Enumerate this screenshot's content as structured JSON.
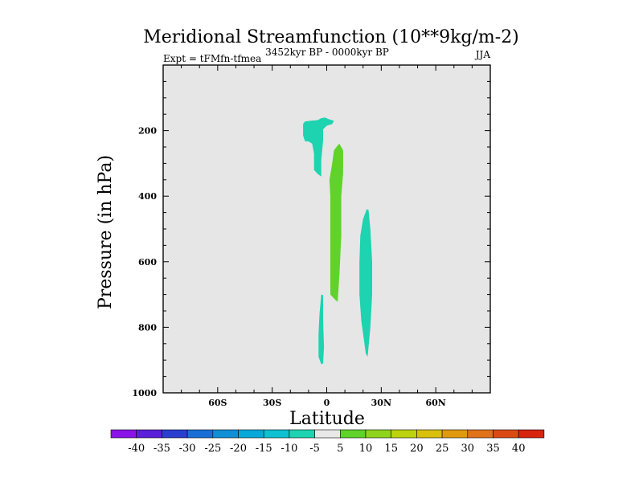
{
  "chart_data": {
    "type": "contour",
    "title": "Meridional Streamfunction (10**9kg/m-2)",
    "subtitle_left": "Expt = tFMfn-tfmea",
    "subtitle_center": "3452kyr BP - 0000kyr BP",
    "subtitle_right": "JJA",
    "xlabel": "Latitude",
    "ylabel": "Pressure (in hPa)",
    "xlim": [
      -90,
      90
    ],
    "ylim": [
      0,
      1000
    ],
    "y_inverted": true,
    "x_ticks": [
      {
        "value": -60,
        "label": "60S"
      },
      {
        "value": -30,
        "label": "30S"
      },
      {
        "value": 0,
        "label": "0"
      },
      {
        "value": 30,
        "label": "30N"
      },
      {
        "value": 60,
        "label": "60N"
      }
    ],
    "y_ticks": [
      {
        "value": 200,
        "label": "200"
      },
      {
        "value": 400,
        "label": "400"
      },
      {
        "value": 600,
        "label": "600"
      },
      {
        "value": 800,
        "label": "800"
      },
      {
        "value": 1000,
        "label": "1000"
      }
    ],
    "background_color": "#e6e6e6",
    "regions": [
      {
        "name": "neg-upper",
        "value_range": "-10 to -5",
        "color": "#1dd3b0",
        "points": [
          [
            -13,
            180
          ],
          [
            -12,
            172
          ],
          [
            -9,
            170
          ],
          [
            -5,
            168
          ],
          [
            -3,
            162
          ],
          [
            -1,
            160
          ],
          [
            1,
            165
          ],
          [
            4,
            170
          ],
          [
            3,
            180
          ],
          [
            0,
            185
          ],
          [
            -2,
            196
          ],
          [
            -2,
            230
          ],
          [
            -3,
            290
          ],
          [
            -3,
            340
          ],
          [
            -5,
            332
          ],
          [
            -7,
            320
          ],
          [
            -7,
            270
          ],
          [
            -8,
            240
          ],
          [
            -10,
            233
          ],
          [
            -12,
            232
          ],
          [
            -13,
            215
          ]
        ]
      },
      {
        "name": "pos-central",
        "value_range": "5 to 10",
        "color": "#5fd32a",
        "points": [
          [
            6,
            245
          ],
          [
            7,
            240
          ],
          [
            9,
            260
          ],
          [
            9,
            330
          ],
          [
            8,
            400
          ],
          [
            8,
            520
          ],
          [
            7,
            640
          ],
          [
            6,
            722
          ],
          [
            5,
            718
          ],
          [
            2,
            700
          ],
          [
            2,
            650
          ],
          [
            2,
            560
          ],
          [
            2,
            400
          ],
          [
            1.5,
            350
          ],
          [
            3,
            300
          ],
          [
            4,
            260
          ]
        ]
      },
      {
        "name": "neg-south",
        "value_range": "-10 to -5",
        "color": "#1dd3b0",
        "points": [
          [
            -3,
            700
          ],
          [
            -2,
            702
          ],
          [
            -2,
            780
          ],
          [
            -1.5,
            860
          ],
          [
            -2,
            910
          ],
          [
            -3,
            913
          ],
          [
            -4.5,
            890
          ],
          [
            -4.5,
            820
          ],
          [
            -4,
            760
          ]
        ]
      },
      {
        "name": "neg-north",
        "value_range": "-10 to -5",
        "color": "#1dd3b0",
        "points": [
          [
            22,
            440
          ],
          [
            23,
            442
          ],
          [
            24,
            500
          ],
          [
            25,
            600
          ],
          [
            25,
            700
          ],
          [
            24,
            800
          ],
          [
            22.5,
            890
          ],
          [
            21.5,
            880
          ],
          [
            19,
            780
          ],
          [
            18,
            700
          ],
          [
            18,
            600
          ],
          [
            18.5,
            520
          ],
          [
            20,
            470
          ]
        ]
      }
    ],
    "colorbar": {
      "labels": [
        "-40",
        "-35",
        "-30",
        "-25",
        "-20",
        "-15",
        "-10",
        "-5",
        "5",
        "10",
        "15",
        "20",
        "25",
        "30",
        "35",
        "40"
      ],
      "colors": [
        "#8a14e8",
        "#5a1fd8",
        "#2a3fd0",
        "#1a6fd6",
        "#0f8fd6",
        "#08a8d8",
        "#0ec0d0",
        "#1dd3b0",
        "#e8e8e8",
        "#5fd32a",
        "#8ed41c",
        "#bcd20e",
        "#d8c00c",
        "#e09a10",
        "#e0721a",
        "#dc4a14",
        "#d8240e"
      ]
    }
  }
}
